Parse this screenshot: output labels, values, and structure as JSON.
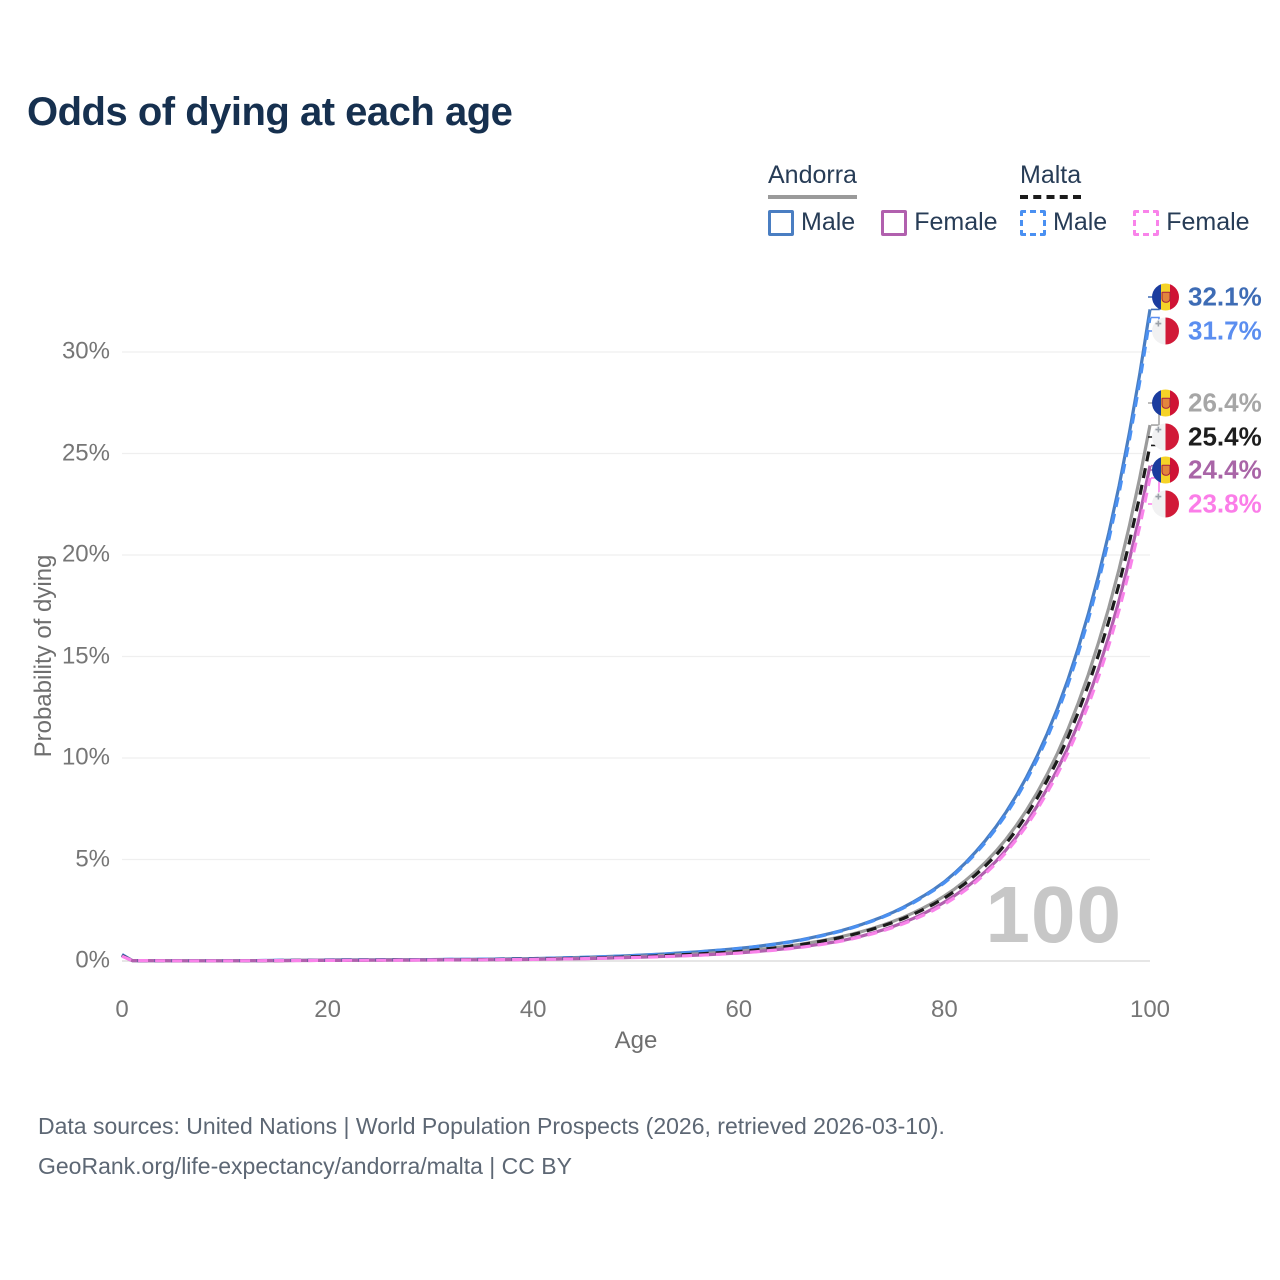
{
  "title": "Odds of dying at each age",
  "watermark_age": "100",
  "legend": {
    "groups": [
      {
        "country": "Andorra",
        "line_style": "solid",
        "line_color": "#9a9a9a",
        "items": [
          {
            "label": "Male",
            "color": "#4a7ec2"
          },
          {
            "label": "Female",
            "color": "#b160ae"
          }
        ]
      },
      {
        "country": "Malta",
        "line_style": "dashed",
        "line_color": "#1b1b1b",
        "items": [
          {
            "label": "Male",
            "color": "#4a90f2"
          },
          {
            "label": "Female",
            "color": "#f983ea"
          }
        ]
      }
    ]
  },
  "axes": {
    "x_label": "Age",
    "y_label": "Probability of dying",
    "x_ticks": [
      0,
      20,
      40,
      60,
      80,
      100
    ],
    "y_ticks": [
      0,
      5,
      10,
      15,
      20,
      25,
      30
    ],
    "y_tick_suffix": "%"
  },
  "footer": {
    "line1": "Data sources: United Nations | World Population Prospects (2026, retrieved 2026-03-10).",
    "line2": "GeoRank.org/life-expectancy/andorra/malta | CC BY"
  },
  "chart_data": {
    "type": "line",
    "title": "Odds of dying at each age",
    "xlabel": "Age",
    "ylabel": "Probability of dying",
    "xlim": [
      0,
      100
    ],
    "ylim": [
      0,
      33
    ],
    "grid": true,
    "legend_position": "top-right",
    "unit": "percent",
    "ages": [
      0,
      1,
      5,
      10,
      15,
      20,
      25,
      30,
      35,
      40,
      45,
      50,
      55,
      60,
      65,
      70,
      75,
      80,
      85,
      90,
      95,
      100
    ],
    "series": [
      {
        "name": "Andorra Male",
        "country": "Andorra",
        "sex": "Male",
        "style": "solid",
        "color": "#4a7ec2",
        "label_color": "#3e6cb5",
        "flag": "andorra",
        "end_label": "32.1%",
        "values": [
          0.32,
          0.02,
          0.01,
          0.01,
          0.03,
          0.05,
          0.06,
          0.07,
          0.09,
          0.12,
          0.18,
          0.28,
          0.42,
          0.62,
          0.95,
          1.5,
          2.4,
          3.9,
          6.6,
          11.2,
          19.0,
          32.1
        ]
      },
      {
        "name": "Malta Male",
        "country": "Malta",
        "sex": "Male",
        "style": "dashed",
        "color": "#4a90f2",
        "label_color": "#5b8ef0",
        "flag": "malta",
        "end_label": "31.7%",
        "values": [
          0.3,
          0.02,
          0.01,
          0.01,
          0.03,
          0.05,
          0.06,
          0.07,
          0.09,
          0.12,
          0.18,
          0.27,
          0.41,
          0.61,
          0.93,
          1.48,
          2.37,
          3.85,
          6.5,
          11.0,
          18.7,
          31.7
        ]
      },
      {
        "name": "Andorra Both sexes",
        "country": "Andorra",
        "sex": "Both",
        "style": "solid",
        "color": "#9b9b9b",
        "label_color": "#a6a6a6",
        "flag": "andorra",
        "end_label": "26.4%",
        "values": [
          0.28,
          0.02,
          0.01,
          0.01,
          0.02,
          0.04,
          0.05,
          0.06,
          0.07,
          0.1,
          0.15,
          0.22,
          0.33,
          0.48,
          0.75,
          1.2,
          1.95,
          3.2,
          5.4,
          9.2,
          15.7,
          26.4
        ]
      },
      {
        "name": "Malta Both sexes",
        "country": "Malta",
        "sex": "Both",
        "style": "dashed",
        "color": "#1b1b1b",
        "label_color": "#1d1d1d",
        "flag": "malta",
        "end_label": "25.4%",
        "values": [
          0.27,
          0.02,
          0.01,
          0.01,
          0.02,
          0.04,
          0.05,
          0.06,
          0.07,
          0.1,
          0.14,
          0.21,
          0.32,
          0.47,
          0.73,
          1.17,
          1.9,
          3.1,
          5.2,
          8.9,
          15.1,
          25.4
        ]
      },
      {
        "name": "Andorra Female",
        "country": "Andorra",
        "sex": "Female",
        "style": "solid",
        "color": "#b160ae",
        "label_color": "#a965a7",
        "flag": "andorra",
        "end_label": "24.4%",
        "values": [
          0.25,
          0.02,
          0.01,
          0.01,
          0.02,
          0.03,
          0.04,
          0.05,
          0.06,
          0.08,
          0.12,
          0.18,
          0.27,
          0.4,
          0.63,
          1.0,
          1.7,
          2.9,
          4.9,
          8.5,
          14.4,
          24.4
        ]
      },
      {
        "name": "Malta Female",
        "country": "Malta",
        "sex": "Female",
        "style": "dashed",
        "color": "#f983ea",
        "label_color": "#fb7de8",
        "flag": "malta",
        "end_label": "23.8%",
        "values": [
          0.24,
          0.02,
          0.01,
          0.01,
          0.02,
          0.03,
          0.04,
          0.05,
          0.06,
          0.08,
          0.12,
          0.17,
          0.26,
          0.39,
          0.61,
          0.98,
          1.65,
          2.8,
          4.8,
          8.3,
          14.0,
          23.8
        ]
      }
    ]
  }
}
